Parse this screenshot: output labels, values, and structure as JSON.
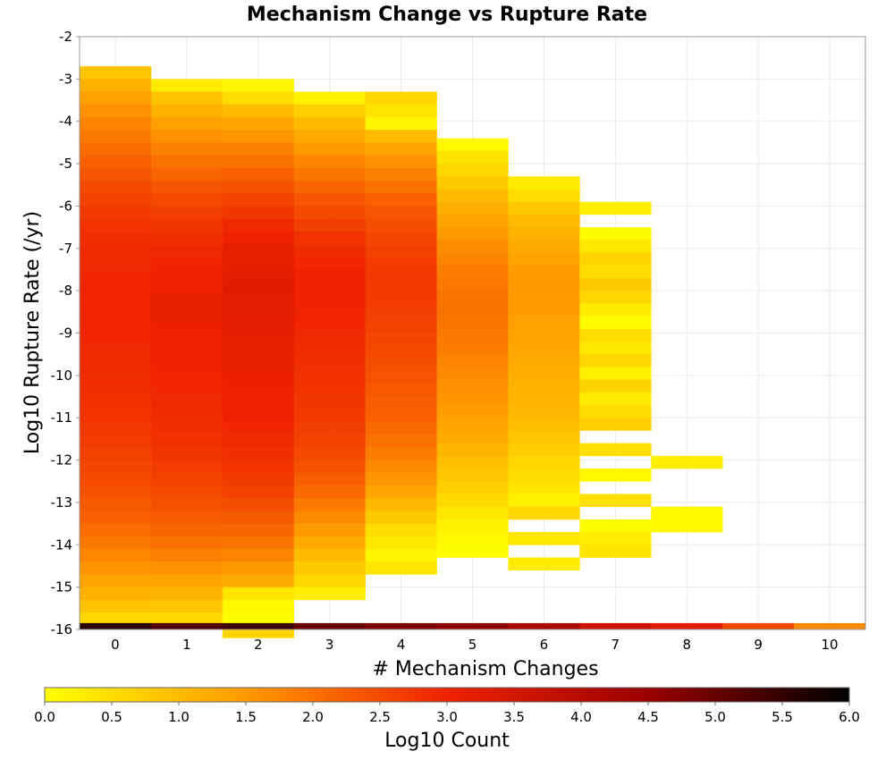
{
  "chart_data": {
    "type": "heatmap",
    "title": "Mechanism Change vs Rupture Rate",
    "xlabel": "# Mechanism Changes",
    "ylabel": "Log10 Rupture Rate (/yr)",
    "colorbar_label": "Log10 Count",
    "xlim": [
      -0.5,
      10.5
    ],
    "ylim": [
      -16,
      -2
    ],
    "x_ticks": [
      "0",
      "1",
      "2",
      "3",
      "4",
      "5",
      "6",
      "7",
      "8",
      "9",
      "10"
    ],
    "y_ticks": [
      "-2",
      "-3",
      "-4",
      "-5",
      "-6",
      "-7",
      "-8",
      "-9",
      "-10",
      "-11",
      "-12",
      "-13",
      "-14",
      "-15",
      "-16"
    ],
    "colorbar_ticks": [
      "0.0",
      "0.5",
      "1.0",
      "1.5",
      "2.0",
      "2.5",
      "3.0",
      "3.5",
      "4.0",
      "4.5",
      "5.0",
      "5.5",
      "6.0"
    ],
    "colorbar_range": [
      0,
      6
    ],
    "colormap": [
      "#ffff00",
      "#ff9900",
      "#ee2200",
      "#990000",
      "#000000"
    ],
    "grid": true,
    "bin_height": 0.3,
    "columns": [
      {
        "x": 0,
        "y_top": -2.7,
        "values": [
          0.85,
          1.15,
          1.4,
          1.6,
          1.75,
          1.9,
          2.05,
          2.2,
          2.35,
          2.5,
          2.6,
          2.7,
          2.78,
          2.85,
          2.9,
          2.92,
          2.95,
          2.97,
          2.98,
          2.97,
          2.96,
          2.95,
          2.93,
          2.9,
          2.88,
          2.85,
          2.8,
          2.77,
          2.72,
          2.68,
          2.62,
          2.55,
          2.48,
          2.4,
          2.3,
          2.2,
          2.05,
          1.9,
          1.72,
          1.55,
          1.35,
          1.15,
          0.9,
          0.6
        ]
      },
      {
        "x": 1,
        "y_top": -3.0,
        "values": [
          0.3,
          0.9,
          1.15,
          1.4,
          1.6,
          1.8,
          2.0,
          2.15,
          2.35,
          2.5,
          2.65,
          2.75,
          2.85,
          2.92,
          2.98,
          3.02,
          3.05,
          3.08,
          3.1,
          3.07,
          3.05,
          3.02,
          3.0,
          2.97,
          2.95,
          2.92,
          2.88,
          2.85,
          2.8,
          2.75,
          2.68,
          2.6,
          2.5,
          2.4,
          2.28,
          2.15,
          2.0,
          1.8,
          1.6,
          1.35,
          1.1,
          0.85,
          0.55
        ]
      },
      {
        "x": 2,
        "y_top": -3.0,
        "values": [
          0.15,
          0.5,
          1.0,
          1.3,
          1.55,
          1.8,
          2.0,
          2.2,
          2.4,
          2.6,
          2.75,
          2.9,
          3.0,
          3.1,
          3.15,
          3.2,
          3.25,
          3.22,
          3.2,
          3.18,
          3.15,
          3.12,
          3.1,
          3.07,
          3.05,
          3.02,
          3.0,
          2.95,
          2.9,
          2.85,
          2.78,
          2.7,
          2.6,
          2.45,
          2.3,
          2.15,
          1.95,
          1.75,
          1.5,
          1.25,
          0.4,
          0.1,
          0.05,
          0.6
        ]
      },
      {
        "x": 3,
        "y_top": -3.3,
        "values": [
          0.2,
          0.7,
          1.0,
          1.25,
          1.5,
          1.75,
          1.95,
          2.15,
          2.35,
          2.5,
          2.65,
          2.78,
          2.88,
          2.95,
          3.0,
          3.02,
          3.0,
          2.98,
          2.95,
          2.9,
          2.87,
          2.85,
          2.8,
          2.77,
          2.73,
          2.7,
          2.65,
          2.6,
          2.5,
          2.4,
          2.25,
          2.1,
          1.9,
          1.7,
          1.5,
          1.25,
          1.0,
          0.8,
          0.6,
          0.25
        ]
      },
      {
        "x": 4,
        "y_top": -3.3,
        "values": [
          0.6,
          0.4,
          0.15,
          1.0,
          1.3,
          1.6,
          1.8,
          2.0,
          2.2,
          2.35,
          2.45,
          2.55,
          2.62,
          2.68,
          2.72,
          2.7,
          2.68,
          2.65,
          2.6,
          2.55,
          2.5,
          2.45,
          2.38,
          2.32,
          2.25,
          2.2,
          2.1,
          2.0,
          1.85,
          1.7,
          1.55,
          1.3,
          1.05,
          0.8,
          0.5,
          0.35,
          0.15,
          0.4
        ]
      },
      {
        "x": 5,
        "y_top": -4.4,
        "values": [
          0.1,
          0.4,
          0.6,
          0.8,
          1.0,
          1.2,
          1.35,
          1.5,
          1.65,
          1.75,
          1.85,
          1.92,
          1.98,
          2.0,
          1.95,
          1.9,
          1.85,
          1.78,
          1.7,
          1.62,
          1.55,
          1.45,
          1.35,
          1.25,
          1.1,
          0.95,
          0.85,
          0.7,
          0.55,
          0.35,
          0.2,
          0.1,
          0.05
        ]
      },
      {
        "x": 6,
        "y_top": -5.3,
        "values": [
          0.3,
          0.5,
          0.8,
          1.0,
          1.15,
          1.25,
          1.35,
          1.45,
          1.5,
          1.48,
          1.45,
          1.4,
          1.35,
          1.3,
          1.25,
          1.2,
          1.15,
          1.1,
          1.05,
          0.95,
          0.85,
          0.75,
          0.6,
          0.5,
          0.4,
          0.2,
          0.6,
          null,
          0.35,
          null,
          0.3
        ]
      },
      {
        "x": 7,
        "y_top": -5.9,
        "values": [
          0.25,
          null,
          0.05,
          0.35,
          0.65,
          0.5,
          0.8,
          0.6,
          0.3,
          0.05,
          0.5,
          0.35,
          0.6,
          0.2,
          0.65,
          0.3,
          0.5,
          0.7,
          null,
          0.45,
          null,
          0.1,
          null,
          0.45,
          null,
          0.05,
          0.25,
          0.4
        ]
      },
      {
        "x": 8,
        "y_top": -11.9,
        "values": [
          0.25,
          null,
          null,
          null,
          0.1,
          0.1
        ]
      }
    ],
    "bottom_row": {
      "y_top": -15.85,
      "y_bottom": -16.0,
      "values": [
        5.6,
        5.2,
        5.4,
        5.0,
        4.8,
        4.6,
        4.2,
        3.6,
        3.2,
        2.5,
        1.7
      ]
    }
  }
}
